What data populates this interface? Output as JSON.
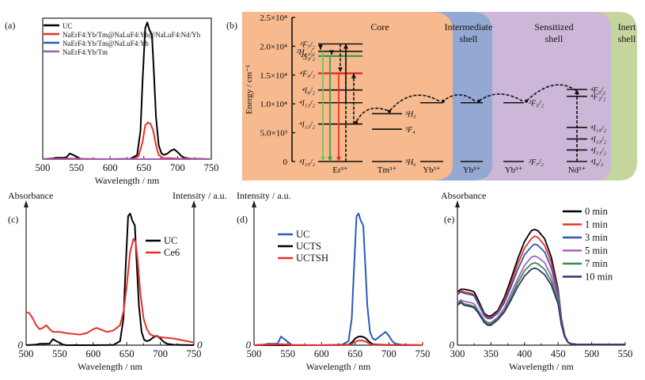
{
  "chart_data": [
    {
      "id": "a",
      "panel_label": "(a)",
      "type": "line",
      "xlabel": "Wavelength / nm",
      "ylabel": "",
      "xlim": [
        500,
        750
      ],
      "ylim": [
        0,
        1.0
      ],
      "xticks": [
        500,
        550,
        600,
        650,
        700,
        750
      ],
      "legend_position": "top-left",
      "series": [
        {
          "name": "UC",
          "color": "#000000",
          "x": [
            500,
            515,
            520,
            530,
            535,
            540,
            545,
            550,
            555,
            560,
            600,
            630,
            640,
            645,
            648,
            652,
            655,
            658,
            662,
            665,
            668,
            672,
            676,
            680,
            685,
            690,
            695,
            700,
            705,
            710,
            720,
            750
          ],
          "y": [
            0,
            0.005,
            0.01,
            0.01,
            0.012,
            0.04,
            0.03,
            0.018,
            0.005,
            0,
            0,
            0.002,
            0.03,
            0.2,
            0.55,
            0.93,
            0.97,
            0.92,
            0.88,
            0.6,
            0.3,
            0.1,
            0.04,
            0.03,
            0.04,
            0.06,
            0.07,
            0.05,
            0.025,
            0.01,
            0.003,
            0
          ]
        },
        {
          "name": "NaErF4:Yb/Tm@NaLuF4:Yb@NaLuF4:Nd/Yb",
          "color": "#e8302a",
          "x": [
            500,
            540,
            600,
            635,
            642,
            648,
            652,
            656,
            660,
            664,
            668,
            672,
            678,
            690,
            700,
            750
          ],
          "y": [
            0,
            0.004,
            0,
            0.002,
            0.02,
            0.12,
            0.24,
            0.26,
            0.25,
            0.2,
            0.1,
            0.03,
            0.008,
            0.006,
            0.004,
            0
          ]
        },
        {
          "name": "NaErF4:Yb/Tm@NaLuF4:Yb",
          "color": "#2b5bb8",
          "x": [
            500,
            750
          ],
          "y": [
            0,
            0
          ]
        },
        {
          "name": "NaErF4:Yb/Tm",
          "color": "#a05cb5",
          "x": [
            500,
            750
          ],
          "y": [
            0,
            0
          ]
        }
      ]
    },
    {
      "id": "c",
      "panel_label": "(c)",
      "type": "line",
      "xlabel": "Wavelength / nm",
      "ylabel_left": "Absorbance",
      "ylabel_right": "Intensity / a.u.",
      "zero_label": "0",
      "xlim": [
        500,
        750
      ],
      "ylim": [
        0,
        1.0
      ],
      "xticks": [
        500,
        550,
        600,
        650,
        700,
        750
      ],
      "legend_position": "top-right",
      "series": [
        {
          "name": "UC",
          "color": "#000000",
          "x": [
            500,
            515,
            520,
            530,
            535,
            540,
            545,
            550,
            555,
            560,
            600,
            630,
            640,
            645,
            648,
            652,
            655,
            658,
            662,
            665,
            668,
            672,
            676,
            680,
            685,
            690,
            695,
            700,
            705,
            710,
            720,
            750
          ],
          "y": [
            0,
            0.005,
            0.01,
            0.01,
            0.012,
            0.045,
            0.03,
            0.018,
            0.005,
            0,
            0,
            0.002,
            0.03,
            0.2,
            0.55,
            0.97,
            0.99,
            0.94,
            0.9,
            0.6,
            0.3,
            0.1,
            0.04,
            0.03,
            0.04,
            0.06,
            0.07,
            0.05,
            0.025,
            0.01,
            0.003,
            0
          ]
        },
        {
          "name": "Ce6",
          "color": "#e8302a",
          "x": [
            500,
            505,
            510,
            515,
            520,
            525,
            530,
            535,
            540,
            550,
            560,
            580,
            590,
            600,
            605,
            610,
            620,
            630,
            640,
            645,
            650,
            655,
            660,
            663,
            666,
            670,
            675,
            680,
            685,
            690,
            700,
            720,
            740,
            750
          ],
          "y": [
            0.25,
            0.24,
            0.2,
            0.15,
            0.12,
            0.13,
            0.15,
            0.12,
            0.1,
            0.1,
            0.09,
            0.08,
            0.09,
            0.12,
            0.13,
            0.12,
            0.1,
            0.11,
            0.15,
            0.25,
            0.45,
            0.7,
            0.8,
            0.78,
            0.65,
            0.4,
            0.2,
            0.12,
            0.08,
            0.07,
            0.06,
            0.05,
            0.03,
            0.02
          ]
        }
      ]
    },
    {
      "id": "d",
      "panel_label": "(d)",
      "type": "line",
      "xlabel": "Wavelength / nm",
      "ylabel": "Intensity / a.u.",
      "zero_label": "0",
      "xlim": [
        500,
        750
      ],
      "ylim": [
        0,
        1.0
      ],
      "xticks": [
        500,
        550,
        600,
        650,
        700,
        750
      ],
      "legend_position": "top-left",
      "series": [
        {
          "name": "UC",
          "color": "#2b5bb8",
          "x": [
            500,
            515,
            520,
            530,
            535,
            540,
            545,
            550,
            555,
            560,
            600,
            630,
            640,
            645,
            648,
            652,
            655,
            658,
            662,
            665,
            668,
            672,
            676,
            680,
            685,
            690,
            695,
            700,
            705,
            710,
            720,
            750
          ],
          "y": [
            0,
            0.005,
            0.01,
            0.01,
            0.012,
            0.065,
            0.045,
            0.025,
            0.005,
            0,
            0,
            0.002,
            0.03,
            0.2,
            0.55,
            0.97,
            0.99,
            0.94,
            0.9,
            0.6,
            0.3,
            0.1,
            0.05,
            0.04,
            0.06,
            0.08,
            0.1,
            0.07,
            0.03,
            0.01,
            0.003,
            0
          ]
        },
        {
          "name": "UCTS",
          "color": "#000000",
          "x": [
            500,
            600,
            640,
            645,
            650,
            655,
            660,
            665,
            670,
            675,
            680,
            700,
            750
          ],
          "y": [
            0,
            0,
            0.003,
            0.02,
            0.05,
            0.065,
            0.065,
            0.055,
            0.03,
            0.01,
            0.004,
            0.002,
            0
          ]
        },
        {
          "name": "UCTSH",
          "color": "#e8302a",
          "x": [
            500,
            520,
            540,
            560,
            600,
            640,
            645,
            650,
            655,
            660,
            665,
            670,
            675,
            680,
            700,
            720,
            750
          ],
          "y": [
            0,
            0.004,
            0.008,
            0.002,
            0,
            0.002,
            0.01,
            0.025,
            0.035,
            0.035,
            0.028,
            0.015,
            0.005,
            0.002,
            0.002,
            0.002,
            0
          ]
        }
      ]
    },
    {
      "id": "e",
      "panel_label": "(e)",
      "type": "line",
      "xlabel": "Wavelength / nm",
      "ylabel": "Absorbance",
      "zero_label": "0",
      "xlim": [
        300,
        550
      ],
      "ylim": [
        0,
        1.0
      ],
      "xticks": [
        300,
        350,
        400,
        450,
        500,
        550
      ],
      "legend_position": "top-right",
      "series": [
        {
          "name": "0 min",
          "color": "#000000",
          "x": [
            300,
            305,
            310,
            320,
            325,
            330,
            340,
            345,
            350,
            360,
            370,
            380,
            390,
            400,
            410,
            415,
            420,
            430,
            440,
            450,
            455,
            460,
            465,
            470,
            480,
            500,
            550
          ],
          "y": [
            0.4,
            0.42,
            0.42,
            0.41,
            0.4,
            0.35,
            0.24,
            0.22,
            0.22,
            0.26,
            0.36,
            0.5,
            0.65,
            0.78,
            0.86,
            0.87,
            0.86,
            0.8,
            0.66,
            0.42,
            0.2,
            0.07,
            0.02,
            0.01,
            0.005,
            0.005,
            0.005
          ]
        },
        {
          "name": "1 min",
          "color": "#e8302a",
          "x": [
            300,
            305,
            310,
            320,
            325,
            330,
            340,
            345,
            350,
            360,
            370,
            380,
            390,
            400,
            410,
            415,
            420,
            430,
            440,
            450,
            455,
            460,
            465,
            470,
            480,
            500,
            550
          ],
          "y": [
            0.39,
            0.41,
            0.4,
            0.39,
            0.38,
            0.33,
            0.23,
            0.21,
            0.21,
            0.25,
            0.34,
            0.47,
            0.61,
            0.73,
            0.8,
            0.82,
            0.81,
            0.75,
            0.62,
            0.4,
            0.19,
            0.07,
            0.02,
            0.008,
            0.004,
            0.004,
            0.004
          ]
        },
        {
          "name": "3 min",
          "color": "#2b5bb8",
          "x": [
            300,
            305,
            310,
            320,
            325,
            330,
            340,
            345,
            350,
            360,
            370,
            380,
            390,
            400,
            410,
            415,
            420,
            430,
            440,
            450,
            455,
            460,
            465,
            470,
            480,
            500,
            550
          ],
          "y": [
            0.38,
            0.4,
            0.39,
            0.38,
            0.37,
            0.32,
            0.22,
            0.2,
            0.2,
            0.24,
            0.32,
            0.44,
            0.57,
            0.68,
            0.74,
            0.76,
            0.75,
            0.7,
            0.58,
            0.38,
            0.18,
            0.07,
            0.02,
            0.008,
            0.004,
            0.004,
            0.004
          ]
        },
        {
          "name": "5 min",
          "color": "#a65fb8",
          "x": [
            300,
            305,
            310,
            320,
            325,
            330,
            340,
            345,
            350,
            360,
            370,
            380,
            390,
            400,
            410,
            415,
            420,
            430,
            440,
            450,
            455,
            460,
            465,
            470,
            480,
            500,
            550
          ],
          "y": [
            0.32,
            0.34,
            0.33,
            0.32,
            0.31,
            0.27,
            0.19,
            0.17,
            0.17,
            0.21,
            0.28,
            0.39,
            0.5,
            0.6,
            0.66,
            0.67,
            0.66,
            0.62,
            0.52,
            0.35,
            0.17,
            0.06,
            0.02,
            0.008,
            0.005,
            0.005,
            0.005
          ]
        },
        {
          "name": "7 min",
          "color": "#3c8a48",
          "x": [
            300,
            305,
            310,
            320,
            325,
            330,
            340,
            345,
            350,
            360,
            370,
            380,
            390,
            400,
            410,
            415,
            420,
            430,
            440,
            450,
            455,
            460,
            465,
            470,
            480,
            500,
            550
          ],
          "y": [
            0.3,
            0.33,
            0.31,
            0.3,
            0.29,
            0.26,
            0.18,
            0.16,
            0.16,
            0.2,
            0.26,
            0.36,
            0.47,
            0.56,
            0.61,
            0.62,
            0.61,
            0.57,
            0.48,
            0.33,
            0.16,
            0.06,
            0.02,
            0.008,
            0.006,
            0.006,
            0.006
          ]
        },
        {
          "name": "10 min",
          "color": "#2e3470",
          "x": [
            300,
            305,
            310,
            320,
            325,
            330,
            340,
            345,
            350,
            360,
            370,
            380,
            390,
            400,
            410,
            415,
            420,
            430,
            440,
            450,
            455,
            460,
            465,
            470,
            480,
            500,
            550
          ],
          "y": [
            0.3,
            0.32,
            0.3,
            0.29,
            0.28,
            0.25,
            0.17,
            0.15,
            0.15,
            0.19,
            0.25,
            0.34,
            0.44,
            0.52,
            0.57,
            0.58,
            0.57,
            0.53,
            0.45,
            0.31,
            0.15,
            0.06,
            0.02,
            0.008,
            0.005,
            0.005,
            0.005
          ]
        }
      ]
    },
    {
      "id": "b",
      "panel_label": "(b)",
      "type": "diagram",
      "ylabel": "Energy / cm⁻¹",
      "ylim": [
        0,
        25000
      ],
      "yticks": [
        {
          "value": 0,
          "label": "0"
        },
        {
          "value": 5000,
          "label": "5.0×10³"
        },
        {
          "value": 10000,
          "label": "1.0×10⁴"
        },
        {
          "value": 15000,
          "label": "1.5×10⁴"
        },
        {
          "value": 20000,
          "label": "2.0×10⁴"
        },
        {
          "value": 25000,
          "label": "2.5×10⁴"
        }
      ],
      "regions": [
        {
          "name": "Core",
          "color": "#f7b98e"
        },
        {
          "name": "Intermediate shell",
          "color": "#93a9d3"
        },
        {
          "name": "Sensitized shell",
          "color": "#cdb7d8"
        },
        {
          "name": "Inert shell",
          "color": "#c4d59e"
        }
      ],
      "ions": [
        {
          "name": "Er³⁺",
          "levels": [
            {
              "term": "⁴I₁₅/₂",
              "energy": 0
            },
            {
              "term": "⁴I₁₃/₂",
              "energy": 6500
            },
            {
              "term": "⁴I₁₁/₂",
              "energy": 10200
            },
            {
              "term": "⁴I₉/₂",
              "energy": 12400
            },
            {
              "term": "⁴F₉/₂",
              "energy": 15300,
              "color": "#e8302a"
            },
            {
              "term": "⁴S₃/₂",
              "energy": 18300,
              "color": "#3aa14a"
            },
            {
              "term": "²H₁₁/₂",
              "energy": 19100
            },
            {
              "term": "²F₇/₂",
              "energy": 20400
            }
          ]
        },
        {
          "name": "Tm³⁺",
          "levels": [
            {
              "term": "³H₆",
              "energy": 0
            },
            {
              "term": "³F₄",
              "energy": 5600
            },
            {
              "term": "³H₅",
              "energy": 8300
            }
          ]
        },
        {
          "name": "Yb³⁺",
          "levels": [
            {
              "energy": 0
            },
            {
              "energy": 10200
            }
          ]
        },
        {
          "name": "Yb³⁺",
          "levels": [
            {
              "energy": 0
            },
            {
              "energy": 10200
            }
          ]
        },
        {
          "name": "Yb³⁺",
          "levels": [
            {
              "term": "²F₇/₂",
              "energy": 0
            },
            {
              "term": "²F₅/₂",
              "energy": 10200
            }
          ]
        },
        {
          "name": "Nd³⁺",
          "levels": [
            {
              "term": "⁴I₉/₂",
              "energy": 0
            },
            {
              "term": "⁴I₁₁/₂",
              "energy": 2000
            },
            {
              "term": "⁴I₁₃/₂",
              "energy": 3900
            },
            {
              "term": "⁴I₁₅/₂",
              "energy": 5900
            },
            {
              "term": "⁴F₃/₂",
              "energy": 11300
            },
            {
              "term": "⁴F₅/₂",
              "energy": 12500
            }
          ]
        }
      ],
      "emissions": [
        {
          "from": 19100,
          "to": 0,
          "color": "#7cc15a"
        },
        {
          "from": 18300,
          "to": 0,
          "color": "#3aa14a"
        },
        {
          "from": 15300,
          "to": 0,
          "color": "#e8302a"
        }
      ]
    }
  ],
  "panel_b_text": {
    "core": "Core",
    "intermediate": [
      "Intermediate",
      "shell"
    ],
    "sensitized": [
      "Sensitized",
      "shell"
    ],
    "inert": [
      "Inert",
      "shell"
    ]
  }
}
